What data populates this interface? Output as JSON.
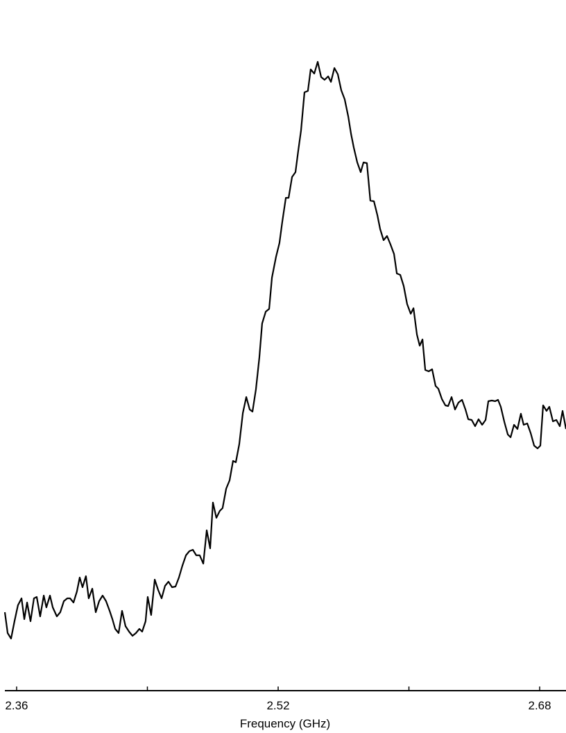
{
  "chart_data": {
    "type": "line",
    "x_label": "Frequency (GHz)",
    "color": "#000000",
    "xlim": [
      2.3528,
      2.6961
    ],
    "ylim": [
      0,
      99.5
    ],
    "xticks": [
      2.36,
      2.52,
      2.68
    ],
    "xminorticks": [
      2.44,
      2.6
    ],
    "x": [
      2.3528,
      2.3545,
      2.3566,
      2.3587,
      2.3608,
      2.363,
      2.3647,
      2.3664,
      2.3685,
      2.3706,
      2.3723,
      2.3744,
      2.3766,
      2.3782,
      2.3804,
      2.3821,
      2.3846,
      2.3867,
      2.3889,
      2.391,
      2.3927,
      2.3948,
      2.3969,
      2.3986,
      2.4003,
      2.4024,
      2.4041,
      2.4063,
      2.4084,
      2.4105,
      2.4126,
      2.4147,
      2.4169,
      2.4186,
      2.4203,
      2.4224,
      2.4245,
      2.4266,
      2.4288,
      2.4309,
      2.433,
      2.4351,
      2.4368,
      2.4389,
      2.4402,
      2.4423,
      2.4445,
      2.4466,
      2.4487,
      2.4508,
      2.4529,
      2.4551,
      2.4572,
      2.4593,
      2.4614,
      2.4636,
      2.4657,
      2.4678,
      2.4699,
      2.472,
      2.4742,
      2.4763,
      2.4784,
      2.4801,
      2.4822,
      2.4843,
      2.486,
      2.4882,
      2.4903,
      2.4924,
      2.4941,
      2.4962,
      2.4984,
      2.5005,
      2.5026,
      2.5043,
      2.5064,
      2.5085,
      2.5102,
      2.5124,
      2.5145,
      2.5162,
      2.5187,
      2.5208,
      2.5225,
      2.5247,
      2.5264,
      2.5285,
      2.5306,
      2.5323,
      2.534,
      2.5361,
      2.5382,
      2.5399,
      2.5421,
      2.5442,
      2.5463,
      2.5484,
      2.5506,
      2.5523,
      2.5544,
      2.5565,
      2.5586,
      2.5607,
      2.5629,
      2.5646,
      2.5663,
      2.5684,
      2.5705,
      2.5722,
      2.5743,
      2.5764,
      2.5786,
      2.5807,
      2.5824,
      2.5845,
      2.5866,
      2.5887,
      2.5909,
      2.5926,
      2.5947,
      2.5968,
      2.5989,
      2.6011,
      2.6028,
      2.6049,
      2.6066,
      2.6083,
      2.61,
      2.6121,
      2.6142,
      2.6163,
      2.618,
      2.6202,
      2.6223,
      2.624,
      2.6261,
      2.6282,
      2.6303,
      2.6325,
      2.6346,
      2.6363,
      2.6384,
      2.6405,
      2.6426,
      2.6448,
      2.6469,
      2.6486,
      2.6507,
      2.6528,
      2.6545,
      2.6562,
      2.6584,
      2.6605,
      2.6622,
      2.6643,
      2.6664,
      2.6685,
      2.6702,
      2.6724,
      2.6745,
      2.6766,
      2.6787,
      2.6804,
      2.6821,
      2.6842,
      2.6859,
      2.6881,
      2.6902,
      2.6923,
      2.694,
      2.6961
    ],
    "values": [
      11.3,
      8.3,
      7.5,
      10.0,
      12.3,
      13.3,
      10.3,
      12.7,
      10.0,
      13.3,
      13.5,
      10.7,
      13.7,
      12.0,
      13.7,
      12.0,
      10.7,
      11.3,
      12.9,
      13.3,
      13.3,
      12.7,
      14.3,
      16.3,
      14.9,
      16.5,
      13.3,
      14.7,
      11.3,
      12.9,
      13.7,
      12.9,
      11.5,
      10.3,
      8.9,
      8.3,
      11.5,
      9.3,
      8.5,
      7.9,
      8.3,
      8.9,
      8.5,
      10.0,
      13.5,
      10.9,
      16.0,
      14.5,
      13.3,
      15.1,
      15.7,
      14.9,
      15.0,
      16.3,
      18.0,
      19.5,
      20.1,
      20.3,
      19.5,
      19.5,
      18.3,
      23.1,
      20.5,
      27.1,
      24.9,
      25.9,
      26.3,
      29.1,
      30.3,
      33.1,
      32.9,
      35.5,
      40.0,
      42.3,
      40.5,
      40.2,
      43.4,
      48.0,
      52.9,
      54.6,
      55.0,
      59.5,
      62.5,
      64.5,
      67.5,
      71.0,
      71.0,
      74.0,
      74.7,
      77.8,
      80.7,
      86.2,
      86.4,
      89.5,
      88.9,
      90.6,
      88.4,
      88.0,
      88.5,
      87.7,
      89.7,
      88.8,
      86.5,
      85.2,
      82.7,
      80.2,
      78.2,
      76.1,
      74.7,
      76.1,
      76.0,
      70.6,
      70.5,
      68.5,
      66.5,
      64.9,
      65.5,
      64.3,
      62.9,
      60.1,
      59.9,
      58.3,
      55.7,
      54.3,
      55.1,
      51.3,
      49.7,
      50.6,
      46.2,
      46.0,
      46.3,
      43.9,
      43.5,
      42.0,
      41.1,
      41.0,
      42.3,
      40.5,
      41.5,
      41.9,
      40.5,
      39.1,
      39.0,
      38.1,
      39.1,
      38.3,
      39.0,
      41.7,
      41.8,
      41.7,
      41.9,
      40.9,
      38.7,
      36.9,
      36.5,
      38.3,
      37.7,
      39.9,
      38.3,
      38.5,
      37.1,
      35.3,
      34.9,
      35.3,
      41.1,
      40.3,
      40.9,
      38.8,
      39.0,
      38.1,
      40.3,
      37.7
    ]
  }
}
